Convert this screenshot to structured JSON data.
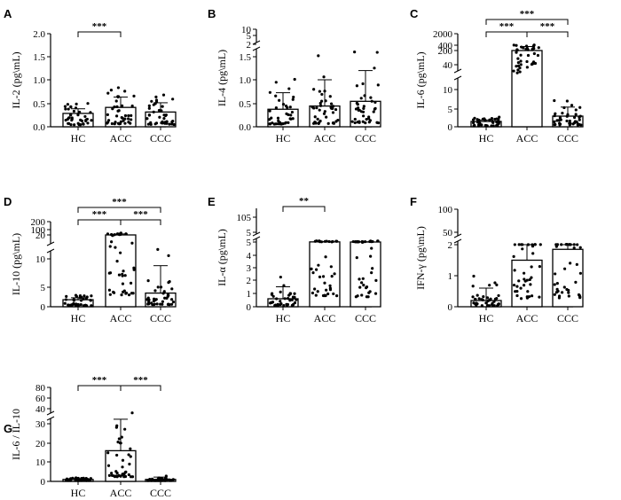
{
  "figure": {
    "panel_letters": [
      "A",
      "B",
      "C",
      "D",
      "E",
      "F",
      "G"
    ]
  },
  "chart_data": [
    {
      "panel": "A",
      "type": "bar",
      "ylabel": "IL-2 (pg\\mL)",
      "categories": [
        "HC",
        "ACC",
        "CCC"
      ],
      "values": [
        0.29,
        0.42,
        0.32
      ],
      "error": [
        0.1,
        0.22,
        0.2
      ],
      "ticks": [
        "0.0",
        "0.5",
        "1.0",
        "1.5",
        "2.0"
      ],
      "ylim": [
        0,
        2.0
      ],
      "significance": [
        {
          "from": "HC",
          "to": "ACC",
          "label": "***"
        }
      ]
    },
    {
      "panel": "B",
      "type": "bar",
      "ylabel": "IL-4 (pg\\mL)",
      "categories": [
        "HC",
        "ACC",
        "CCC"
      ],
      "values": [
        0.38,
        0.45,
        0.55
      ],
      "error": [
        0.35,
        0.55,
        0.65
      ],
      "ticks": [
        "0.0",
        "0.5",
        "1.0",
        "1.5",
        "2",
        "5",
        "10"
      ],
      "ylim": [
        0,
        10
      ],
      "axis_break": "between 1.5 and 2",
      "significance": []
    },
    {
      "panel": "C",
      "type": "bar",
      "ylabel": "IL-6 (pg\\mL)",
      "categories": [
        "HC",
        "ACC",
        "CCC"
      ],
      "values": [
        1.5,
        200,
        3.0
      ],
      "error": [
        0.4,
        150,
        2.5
      ],
      "ticks": [
        "0",
        "5",
        "10",
        "40",
        "200",
        "400",
        "2000"
      ],
      "ylim": [
        0,
        2000
      ],
      "axis_break": "between 10 and 40",
      "significance": [
        {
          "from": "HC",
          "to": "ACC",
          "label": "***"
        },
        {
          "from": "ACC",
          "to": "CCC",
          "label": "***"
        },
        {
          "from": "HC",
          "to": "CCC",
          "label": "***"
        }
      ]
    },
    {
      "panel": "D",
      "type": "bar",
      "ylabel": "IL-10 (pg\\mL)",
      "categories": [
        "HC",
        "ACC",
        "CCC"
      ],
      "values": [
        1.8,
        20,
        3.5
      ],
      "error": [
        0.5,
        15,
        5.3
      ],
      "ticks": [
        "0",
        "5",
        "10",
        "20",
        "100",
        "200"
      ],
      "ylim": [
        0,
        200
      ],
      "axis_break": "between 10 and 20",
      "significance": [
        {
          "from": "HC",
          "to": "ACC",
          "label": "***"
        },
        {
          "from": "ACC",
          "to": "CCC",
          "label": "***"
        },
        {
          "from": "HC",
          "to": "CCC",
          "label": "***"
        }
      ]
    },
    {
      "panel": "E",
      "type": "bar",
      "ylabel": "IL-α (pg\\mL)",
      "categories": [
        "HC",
        "ACC",
        "CCC"
      ],
      "values": [
        0.6,
        5.5,
        5.0
      ],
      "error": [
        0.9,
        1.5,
        1.0
      ],
      "ticks": [
        "0",
        "1",
        "2",
        "3",
        "4",
        "5",
        "5",
        "105"
      ],
      "ylim": [
        0,
        105
      ],
      "axis_break": "between 5 and 5",
      "significance": [
        {
          "from": "HC",
          "to": "ACC",
          "label": "**"
        }
      ]
    },
    {
      "panel": "F",
      "type": "bar",
      "ylabel": "IFN-γ (pg\\mL)",
      "categories": [
        "HC",
        "ACC",
        "CCC"
      ],
      "values": [
        0.2,
        1.5,
        1.85
      ],
      "error": [
        0.4,
        0.6,
        0.3
      ],
      "ticks": [
        "0",
        "1",
        "2",
        "50",
        "100"
      ],
      "ylim": [
        0,
        100
      ],
      "axis_break": "between 2 and 50",
      "significance": []
    },
    {
      "panel": "G",
      "type": "bar",
      "ylabel": "IL-6 / IL-10",
      "categories": [
        "HC",
        "ACC",
        "CCC"
      ],
      "values": [
        1,
        16,
        1
      ],
      "error": [
        0.4,
        17,
        1.2
      ],
      "ticks": [
        "0",
        "10",
        "20",
        "30",
        "40",
        "60",
        "80"
      ],
      "ylim": [
        0,
        80
      ],
      "axis_break": "between 30 and 40",
      "significance": [
        {
          "from": "HC",
          "to": "ACC",
          "label": "***"
        },
        {
          "from": "ACC",
          "to": "CCC",
          "label": "***"
        }
      ]
    }
  ]
}
